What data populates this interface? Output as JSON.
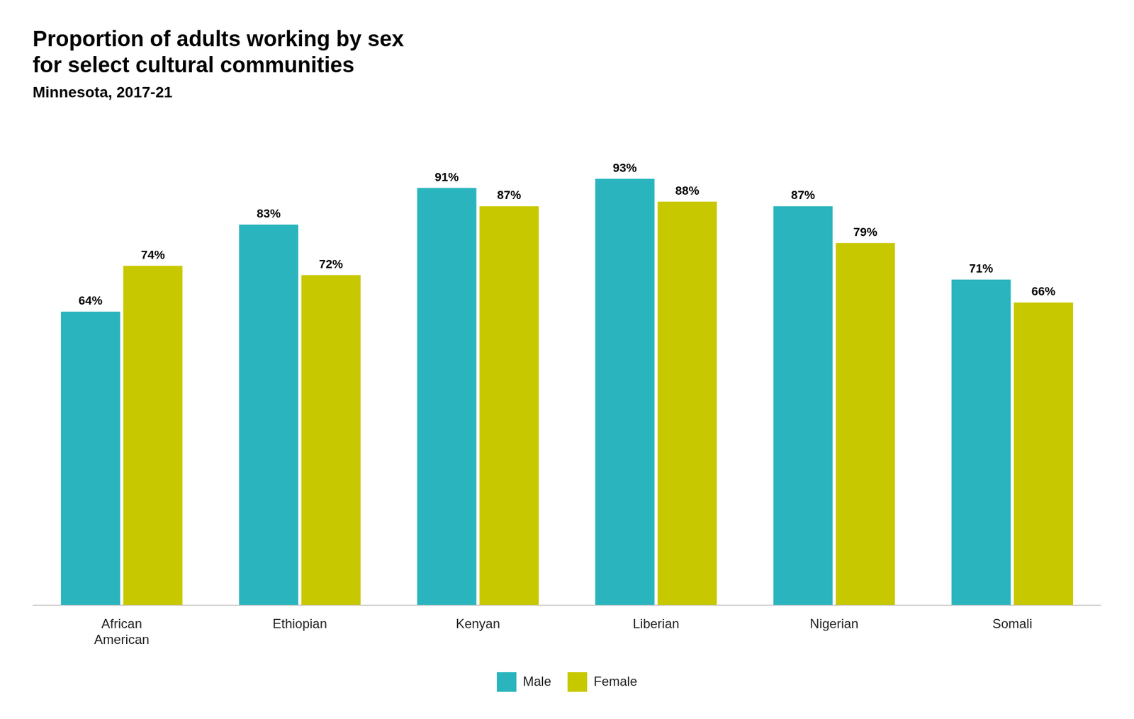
{
  "chart_data": {
    "type": "bar",
    "title": "Proportion of adults working by sex\nfor select cultural communities",
    "subtitle": "Minnesota, 2017-21",
    "categories": [
      "African\nAmerican",
      "Ethiopian",
      "Kenyan",
      "Liberian",
      "Nigerian",
      "Somali"
    ],
    "series": [
      {
        "name": "Male",
        "color": "#2AB5BE",
        "values": [
          64,
          83,
          91,
          93,
          87,
          71
        ],
        "value_labels": [
          "64%",
          "83%",
          "91%",
          "93%",
          "87%",
          "71%"
        ]
      },
      {
        "name": "Female",
        "color": "#C8C800",
        "values": [
          74,
          72,
          87,
          88,
          79,
          66
        ],
        "value_labels": [
          "74%",
          "72%",
          "87%",
          "88%",
          "79%",
          "66%"
        ]
      }
    ],
    "ylim": [
      0,
      105
    ],
    "grid": false,
    "legend": "bottom",
    "data_labels": true,
    "tick_labels": "x"
  }
}
